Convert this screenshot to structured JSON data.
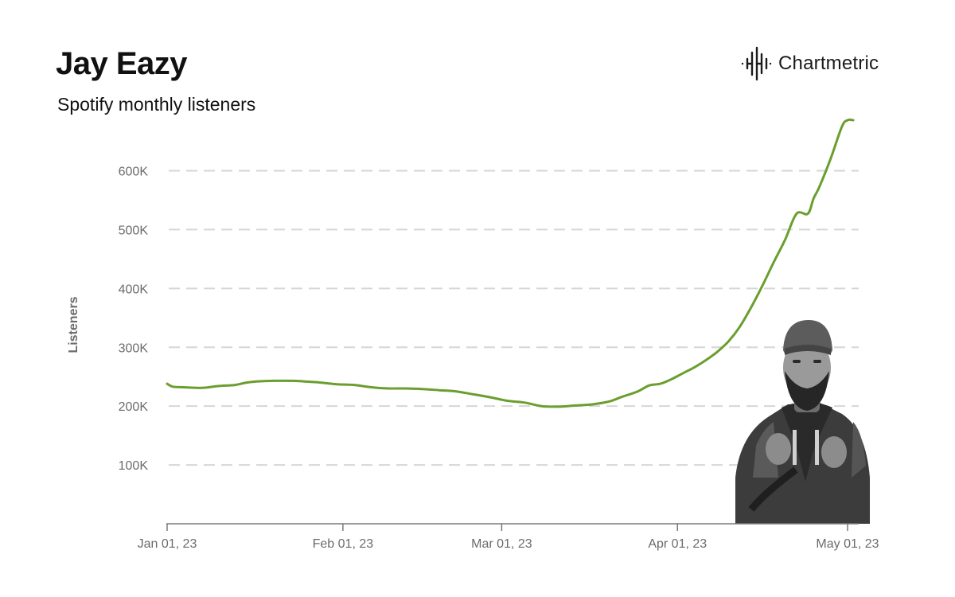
{
  "header": {
    "title": "Jay Eazy",
    "subtitle": "Spotify monthly listeners"
  },
  "brand": {
    "name": "Chartmetric",
    "icon": "chartmetric-waveform-icon"
  },
  "colors": {
    "line": "#6a9e2f",
    "grid": "#d6d6d6",
    "axis": "#7a7a7a",
    "text": "#6b6b6b"
  },
  "chart_data": {
    "type": "line",
    "ylabel": "Listeners",
    "xlabel": "",
    "ylim": [
      0,
      690000
    ],
    "yticks": [
      100000,
      200000,
      300000,
      400000,
      500000,
      600000
    ],
    "ytick_labels": [
      "100K",
      "200K",
      "300K",
      "400K",
      "500K",
      "600K"
    ],
    "xticks": [
      "2023-01-01",
      "2023-02-01",
      "2023-03-01",
      "2023-04-01",
      "2023-05-01"
    ],
    "xtick_labels": [
      "Jan 01, 23",
      "Feb 01, 23",
      "Mar 01, 23",
      "Apr 01, 23",
      "May 01, 23"
    ],
    "grid": "horizontal dashed",
    "series": [
      {
        "x": [
          "2023-01-01",
          "2023-01-02",
          "2023-01-04",
          "2023-01-07",
          "2023-01-10",
          "2023-01-13",
          "2023-01-15",
          "2023-01-17",
          "2023-01-20",
          "2023-01-23",
          "2023-01-25",
          "2023-01-28",
          "2023-01-31",
          "2023-02-03",
          "2023-02-06",
          "2023-02-09",
          "2023-02-12",
          "2023-02-15",
          "2023-02-18",
          "2023-02-21",
          "2023-02-24",
          "2023-02-27",
          "2023-03-02",
          "2023-03-05",
          "2023-03-08",
          "2023-03-11",
          "2023-03-14",
          "2023-03-17",
          "2023-03-20",
          "2023-03-22",
          "2023-03-25",
          "2023-03-27",
          "2023-03-29",
          "2023-03-31",
          "2023-04-02",
          "2023-04-04",
          "2023-04-06",
          "2023-04-08",
          "2023-04-10",
          "2023-04-12",
          "2023-04-14",
          "2023-04-16",
          "2023-04-18",
          "2023-04-20",
          "2023-04-22",
          "2023-04-24",
          "2023-04-25",
          "2023-04-26",
          "2023-04-28",
          "2023-04-30",
          "2023-05-01",
          "2023-05-02"
        ],
        "values": [
          238000,
          233000,
          232000,
          231000,
          234000,
          236000,
          240000,
          242000,
          243000,
          243000,
          242000,
          240000,
          237000,
          236000,
          232000,
          230000,
          230000,
          229000,
          227000,
          225000,
          220000,
          215000,
          209000,
          206000,
          200000,
          199000,
          201000,
          203000,
          208000,
          215000,
          225000,
          235000,
          238000,
          246000,
          256000,
          266000,
          278000,
          292000,
          310000,
          335000,
          368000,
          405000,
          445000,
          483000,
          527000,
          527000,
          553000,
          572000,
          620000,
          675000,
          686000,
          686000
        ]
      }
    ]
  }
}
